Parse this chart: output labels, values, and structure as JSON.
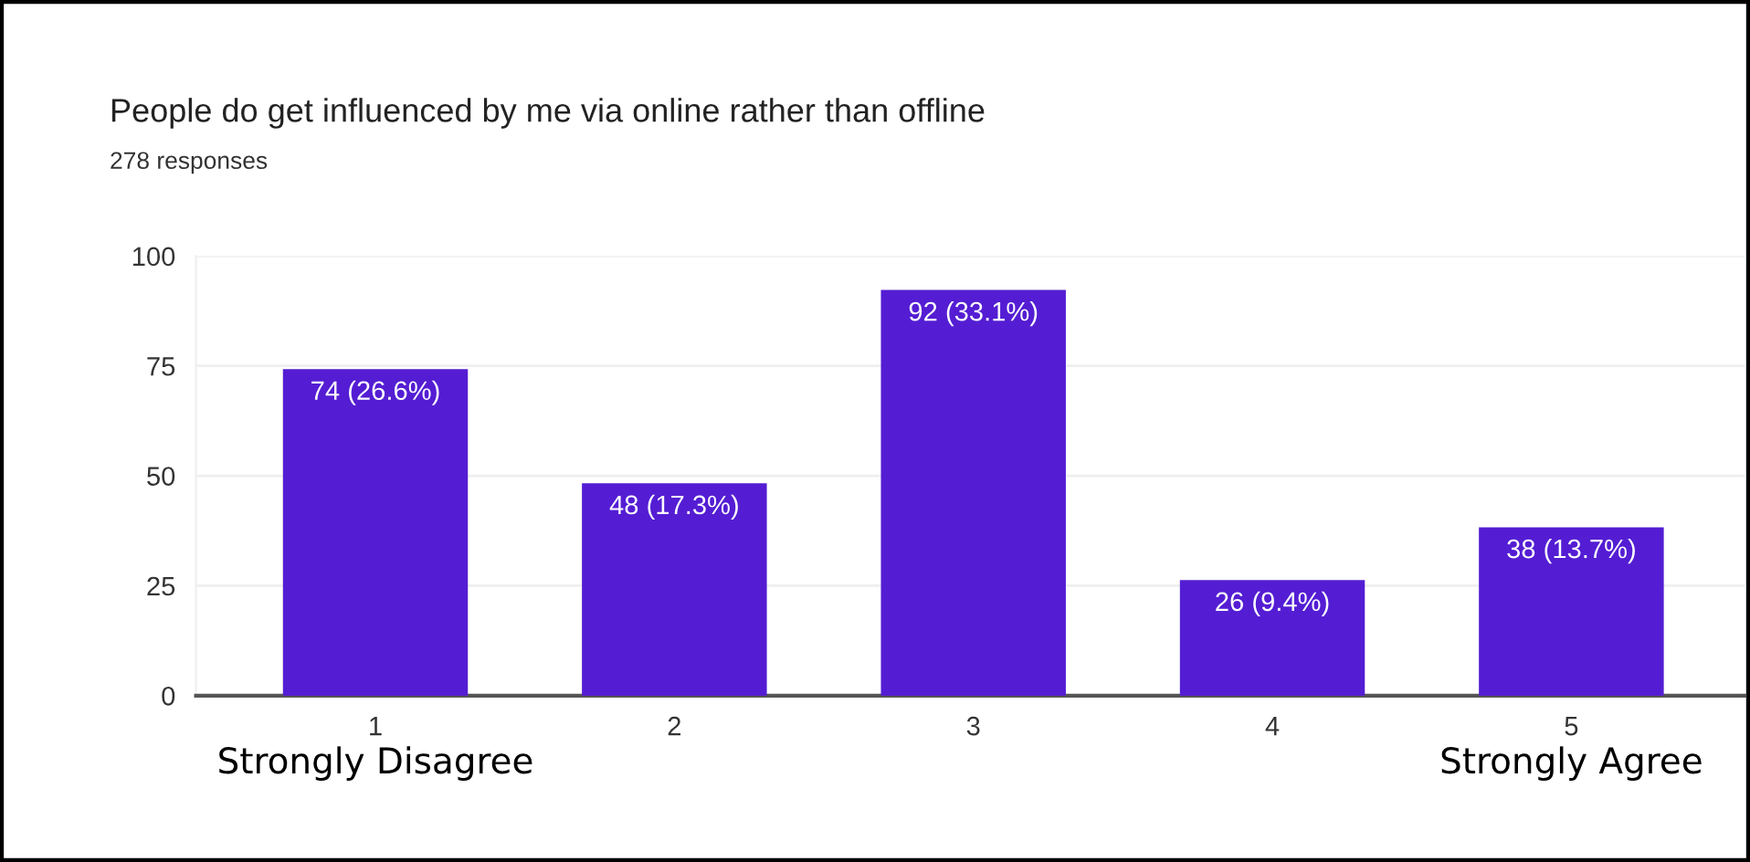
{
  "chart_data": {
    "type": "bar",
    "title": "People do get influenced by me via online rather than offline",
    "subtitle": "278 responses",
    "categories": [
      "1",
      "2",
      "3",
      "4",
      "5"
    ],
    "values": [
      74,
      48,
      92,
      26,
      38
    ],
    "value_labels": [
      "74 (26.6%)",
      "48 (17.3%)",
      "92 (33.1%)",
      "26 (9.4%)",
      "38 (13.7%)"
    ],
    "color": "#541dd3",
    "ylim": [
      0,
      100
    ],
    "yticks": [
      0,
      25,
      50,
      75,
      100
    ],
    "grid": "y",
    "annotations": [
      "Strongly Disagree",
      "Strongly Agree"
    ]
  }
}
